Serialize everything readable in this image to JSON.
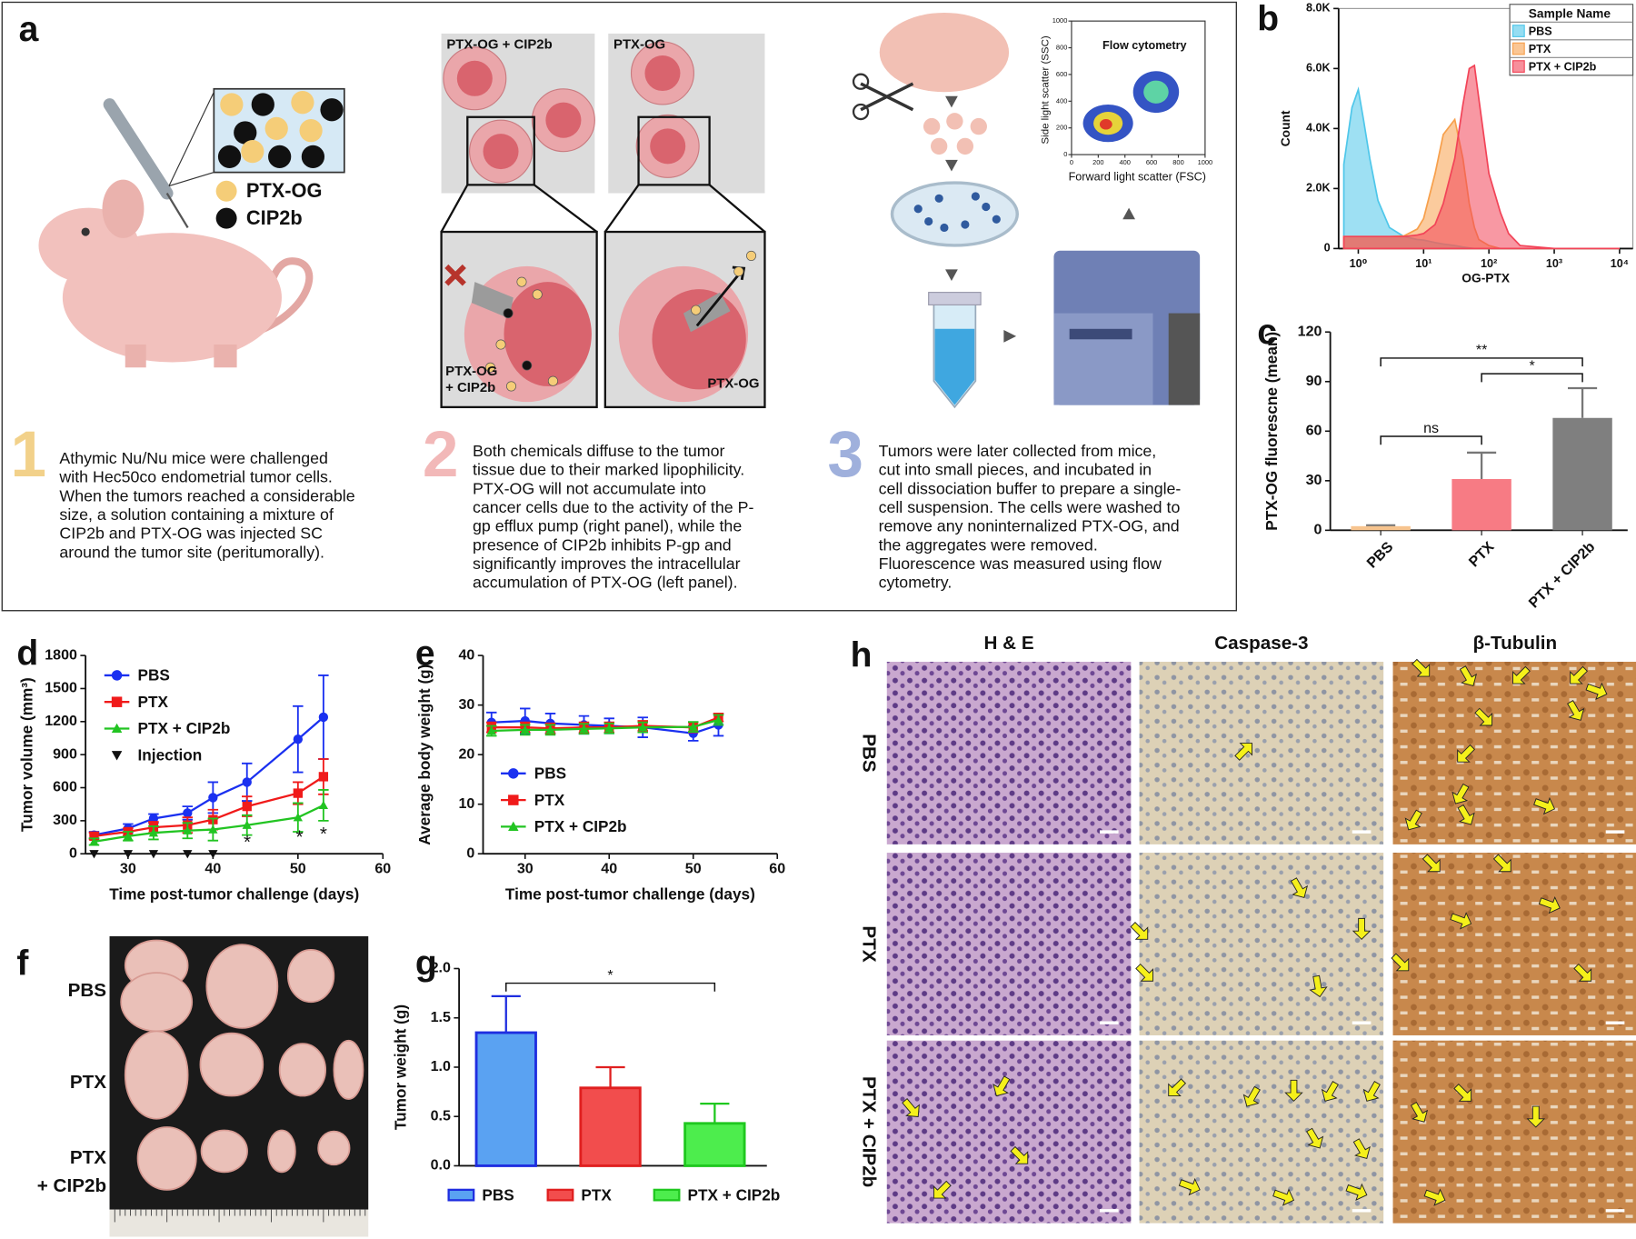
{
  "labels": [
    "a",
    "b",
    "c",
    "d",
    "e",
    "f",
    "g",
    "h"
  ],
  "panel_a": {
    "legend": [
      "PTX-OG",
      "CIP2b"
    ],
    "top_labels": [
      "PTX-OG + CIP2b",
      "PTX-OG"
    ],
    "bottom_labels": [
      [
        "PTX-OG",
        "+ CIP2b"
      ],
      [
        "PTX-OG"
      ]
    ],
    "flow": {
      "title": "Flow cytometry",
      "ylabel": "Side light scatter (SSC)",
      "xlabel": "Forward light scatter (FSC)",
      "xticks": [
        0,
        200,
        400,
        600,
        800,
        1000
      ],
      "yticks": [
        0,
        200,
        400,
        600,
        800,
        1000
      ]
    },
    "steps": [
      {
        "number": "1",
        "lines": [
          "Athymic Nu/Nu mice were challenged",
          "with Hec50co endometrial tumor cells.",
          "When the tumors reached a considerable",
          "size, a solution containing a mixture of",
          "CIP2b and PTX-OG was injected SC",
          "around the tumor site (peritumorally)."
        ]
      },
      {
        "number": "2",
        "lines": [
          "Both chemicals diffuse to the tumor",
          "tissue due to their marked lipophilicity.",
          "PTX-OG will not accumulate into",
          "cancer cells due to the activity of the P-",
          "gp efflux pump (right panel), while the",
          "presence of CIP2b inhibits P-gp and",
          "significantly improves the intracellular",
          "accumulation of PTX-OG (left panel)."
        ]
      },
      {
        "number": "3",
        "lines": [
          "Tumors were later collected from mice,",
          "cut into small pieces, and incubated in",
          "cell dissociation buffer to prepare a single-",
          "cell suspension. The cells were washed to",
          "remove any noninternalized PTX-OG, and",
          "the aggregates were removed.",
          "Fluorescence was measured using flow",
          "cytometry."
        ]
      }
    ]
  },
  "chart_data": [
    {
      "type": "area",
      "xscale": "log",
      "xlabel": "OG-PTX",
      "ylabel": "Count",
      "legend_title": "Sample Name",
      "legend": "upper right",
      "x": [
        0.6,
        0.8,
        1,
        1.2,
        1.5,
        2,
        3,
        5,
        8,
        10,
        15,
        20,
        30,
        40,
        50,
        60,
        70,
        100,
        150,
        200,
        300,
        1000,
        10000
      ],
      "series": [
        {
          "name": "PBS",
          "color": "#4fc7ea",
          "values": [
            2800,
            4700,
            5300,
            4300,
            3000,
            1600,
            700,
            400,
            300,
            280,
            200,
            150,
            100,
            50,
            20,
            0,
            0,
            0,
            0,
            0,
            0,
            0,
            0
          ]
        },
        {
          "name": "PTX",
          "color": "#f7a04c",
          "values": [
            400,
            400,
            400,
            400,
            400,
            400,
            400,
            420,
            650,
            1000,
            2500,
            3800,
            4300,
            3000,
            1500,
            700,
            300,
            100,
            0,
            0,
            0,
            0,
            0
          ]
        },
        {
          "name": "PTX + CIP2b",
          "color": "#f24458",
          "values": [
            400,
            400,
            400,
            400,
            400,
            400,
            400,
            400,
            450,
            500,
            800,
            1500,
            3000,
            4800,
            6000,
            6100,
            5000,
            2500,
            1200,
            500,
            100,
            0,
            0
          ]
        }
      ],
      "xlim": [
        0.5,
        16000
      ],
      "xticks": [
        {
          "value": 1,
          "label": "10⁰"
        },
        {
          "value": 10,
          "label": "10¹"
        },
        {
          "value": 100,
          "label": "10²"
        },
        {
          "value": 1000,
          "label": "10³"
        },
        {
          "value": 10000,
          "label": "10⁴"
        }
      ],
      "ylim": [
        0,
        8000
      ],
      "yticks": [
        0,
        {
          "value": 2000,
          "label": "2.0K"
        },
        {
          "value": 4000,
          "label": "4.0K"
        },
        {
          "value": 6000,
          "label": "6.0K"
        },
        {
          "value": 8000,
          "label": "8.0K"
        }
      ]
    },
    {
      "type": "bar",
      "ylabel": "PTX-OG fluorescne (mean)",
      "categories": [
        "PBS",
        "PTX",
        "PTX + CIP2b"
      ],
      "values": [
        2.5,
        31,
        68
      ],
      "errors": [
        0.5,
        16,
        18
      ],
      "colors": [
        "#f7c48e",
        "#f77b84",
        "#7f7f7f"
      ],
      "ylim": [
        0,
        120
      ],
      "yticks": [
        0,
        30,
        60,
        90,
        120
      ],
      "annotations": [
        "**",
        "*",
        "ns"
      ]
    },
    {
      "type": "line",
      "xlabel": "Time post-tumor challenge (days)",
      "ylabel": "Tumor volume (mm³)",
      "legend": "upper left",
      "x": [
        26,
        30,
        33,
        37,
        40,
        44,
        50,
        53
      ],
      "series": [
        {
          "name": "PBS",
          "color": "#1a30f0",
          "marker": "circle",
          "values": [
            170,
            230,
            320,
            370,
            510,
            650,
            1040,
            1240
          ],
          "errors": [
            30,
            40,
            40,
            60,
            140,
            170,
            300,
            380
          ]
        },
        {
          "name": "PTX",
          "color": "#f01a1a",
          "marker": "square",
          "values": [
            160,
            200,
            240,
            260,
            310,
            430,
            550,
            700
          ],
          "errors": [
            30,
            30,
            50,
            70,
            90,
            90,
            100,
            160
          ]
        },
        {
          "name": "PTX + CIP2b",
          "color": "#22c422",
          "marker": "triangle",
          "values": [
            110,
            160,
            190,
            210,
            220,
            260,
            330,
            440
          ],
          "errors": [
            30,
            40,
            60,
            70,
            100,
            90,
            130,
            140
          ]
        }
      ],
      "markers": {
        "name": "Injection",
        "color": "#111111",
        "x": [
          26,
          30,
          33,
          37,
          40
        ]
      },
      "annotations": [
        "*",
        "*",
        "*"
      ],
      "xlim": [
        25,
        60
      ],
      "xticks": [
        30,
        40,
        50,
        60
      ],
      "ylim": [
        0,
        1800
      ],
      "yticks": [
        0,
        300,
        600,
        900,
        1200,
        1500,
        1800
      ]
    },
    {
      "type": "line",
      "xlabel": "Time post-tumor challenge (days)",
      "ylabel": "Average body weight (g)",
      "legend": "center left",
      "x": [
        26,
        30,
        33,
        37,
        40,
        44,
        50,
        53
      ],
      "series": [
        {
          "name": "PBS",
          "color": "#1a30f0",
          "marker": "circle",
          "values": [
            26.5,
            26.8,
            26.3,
            26,
            25.8,
            25.5,
            24.3,
            26
          ],
          "errors": [
            2,
            2.5,
            2,
            1.8,
            1.5,
            2,
            1.5,
            2.2
          ]
        },
        {
          "name": "PTX",
          "color": "#f01a1a",
          "marker": "square",
          "values": [
            25.5,
            25.5,
            25.3,
            25.5,
            25.5,
            25.8,
            25.5,
            27.5
          ],
          "errors": [
            1,
            1,
            1,
            1,
            1,
            1,
            1,
            0.8
          ]
        },
        {
          "name": "PTX + CIP2b",
          "color": "#22c422",
          "marker": "triangle",
          "values": [
            24.8,
            25,
            25,
            25.2,
            25.3,
            25.5,
            25.6,
            27
          ],
          "errors": [
            1,
            1,
            1,
            1,
            1,
            1,
            1,
            1
          ]
        }
      ],
      "xlim": [
        25,
        60
      ],
      "xticks": [
        30,
        40,
        50,
        60
      ],
      "ylim": [
        0,
        40
      ],
      "yticks": [
        0,
        10,
        20,
        30,
        40
      ]
    },
    {
      "type": "bar",
      "ylabel": "Tumor weight (g)",
      "legend": "bottom",
      "categories": [
        "PBS",
        "PTX",
        "PTX + CIP2b"
      ],
      "values": [
        1.35,
        0.79,
        0.43
      ],
      "errors": [
        0.37,
        0.21,
        0.2
      ],
      "colors": [
        "#5aa2f2",
        "#f24d4d",
        "#4ded4d"
      ],
      "edgecolors": [
        "#1f2ee0",
        "#e01f1f",
        "#1fc81f"
      ],
      "ylim": [
        0,
        2
      ],
      "yticks": [
        {
          "value": 0,
          "label": "0.0"
        },
        0.5,
        {
          "value": 1,
          "label": "1.0"
        },
        1.5,
        {
          "value": 2,
          "label": "2.0"
        }
      ],
      "annotations": [
        "*"
      ]
    }
  ],
  "panel_f": {
    "rows": [
      [
        "PBS"
      ],
      [
        "PTX"
      ],
      [
        "PTX",
        "+ CIP2b"
      ]
    ]
  },
  "panel_h": {
    "columns": [
      "H & E",
      "Caspase-3",
      "β-Tubulin"
    ],
    "rows": [
      "PBS",
      "PTX",
      "PTX + CIP2b"
    ]
  }
}
